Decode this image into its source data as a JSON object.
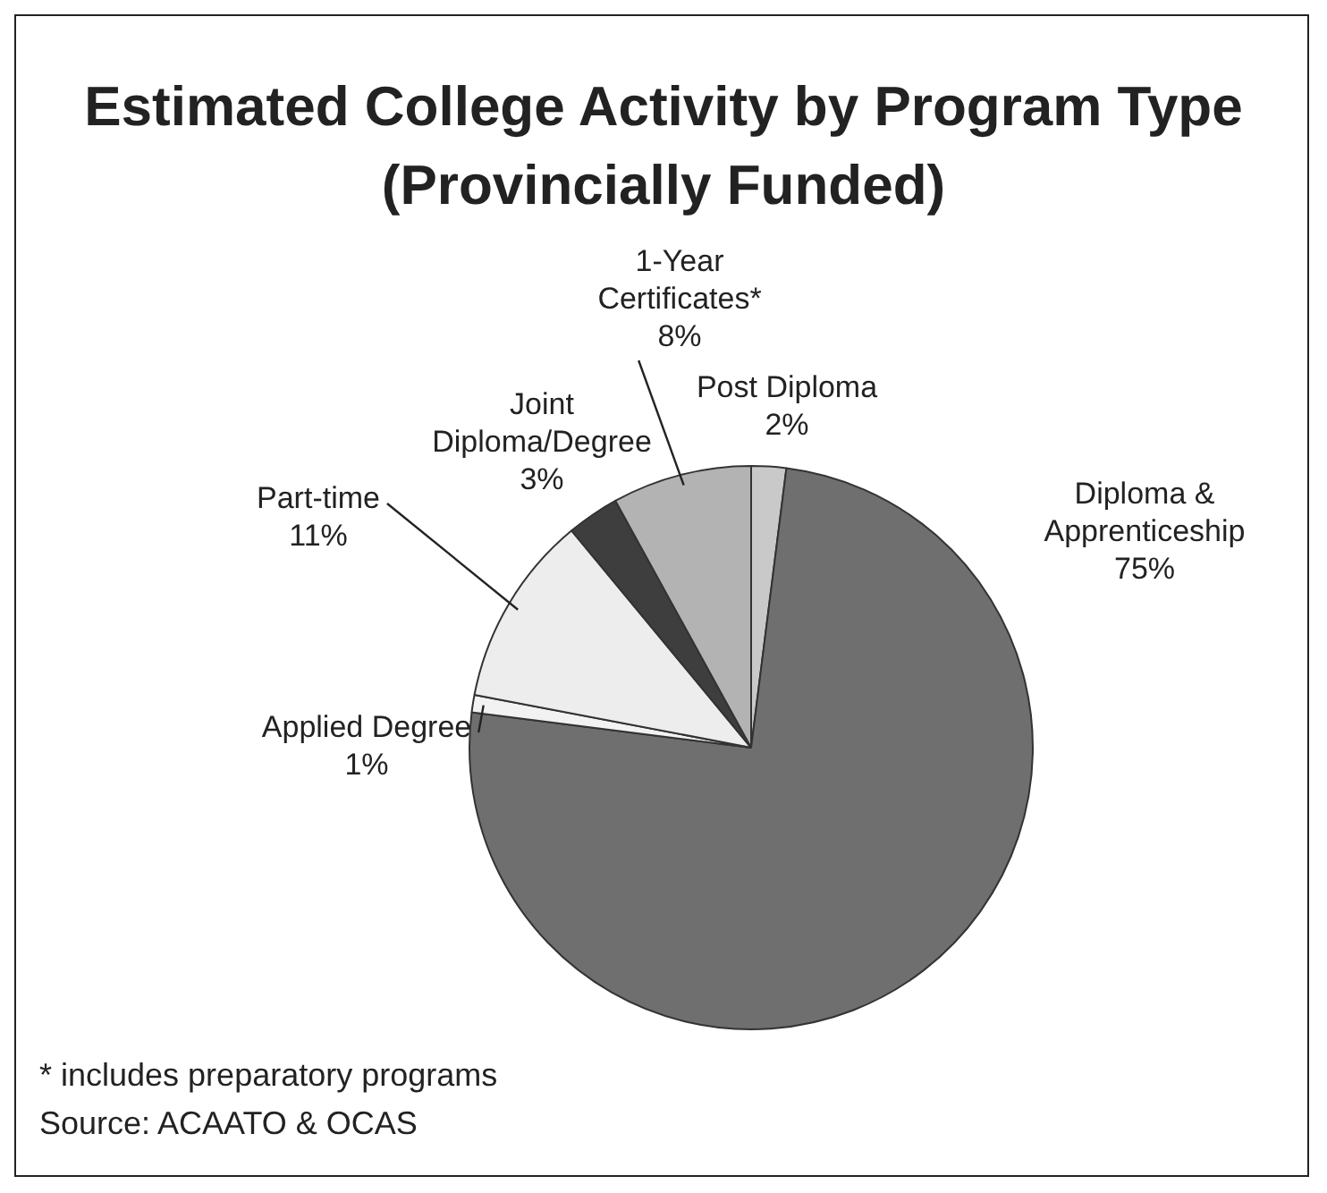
{
  "chart_data": {
    "type": "pie",
    "title": "Estimated College Activity by Program Type (Provincially Funded)",
    "categories": [
      "Post Diploma",
      "Diploma &\nApprenticeship",
      "Applied Degree",
      "Part-time",
      "Joint\nDiploma/Degree",
      "1-Year\nCertificates*"
    ],
    "values": [
      2,
      75,
      1,
      11,
      3,
      8
    ],
    "value_labels": [
      "2%",
      "75%",
      "1%",
      "11%",
      "3%",
      "8%"
    ],
    "colors": [
      "#c9c9c9",
      "#6f6f6f",
      "#f2f2f2",
      "#ededed",
      "#3e3e3e",
      "#b3b3b3"
    ],
    "legend": false,
    "annotations": [
      "* includes preparatory programs",
      "Source: ACAATO & OCAS"
    ]
  }
}
